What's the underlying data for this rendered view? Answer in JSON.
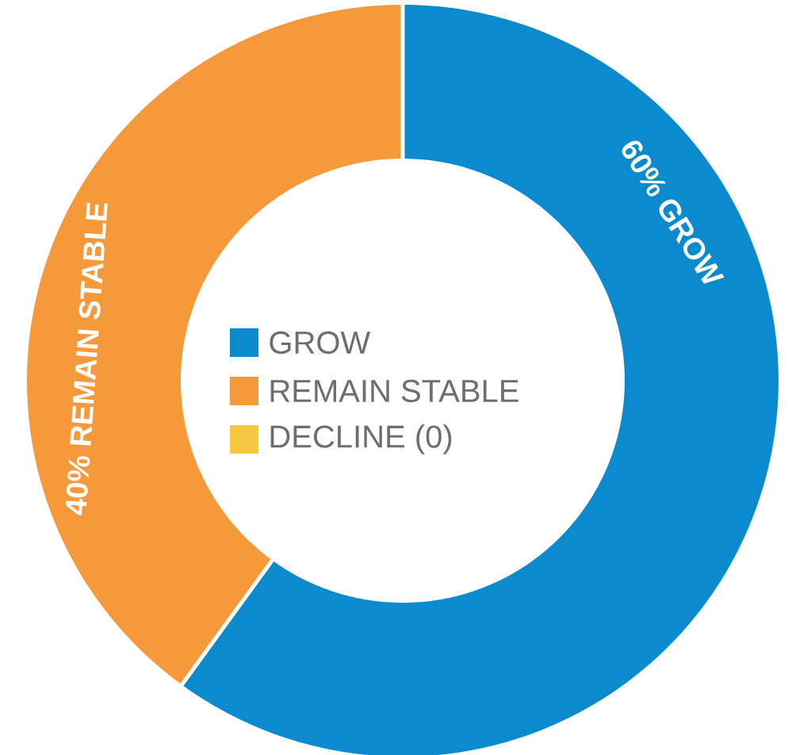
{
  "chart_data": {
    "type": "donut",
    "categories": [
      "GROW",
      "REMAIN STABLE",
      "DECLINE (0)"
    ],
    "values": [
      60,
      40,
      0
    ],
    "colors": [
      "#0b8bcd",
      "#f6993a",
      "#f5c940"
    ],
    "value_labels": [
      "60% GROW",
      "40% REMAIN STABLE",
      null
    ],
    "legend": "center"
  }
}
